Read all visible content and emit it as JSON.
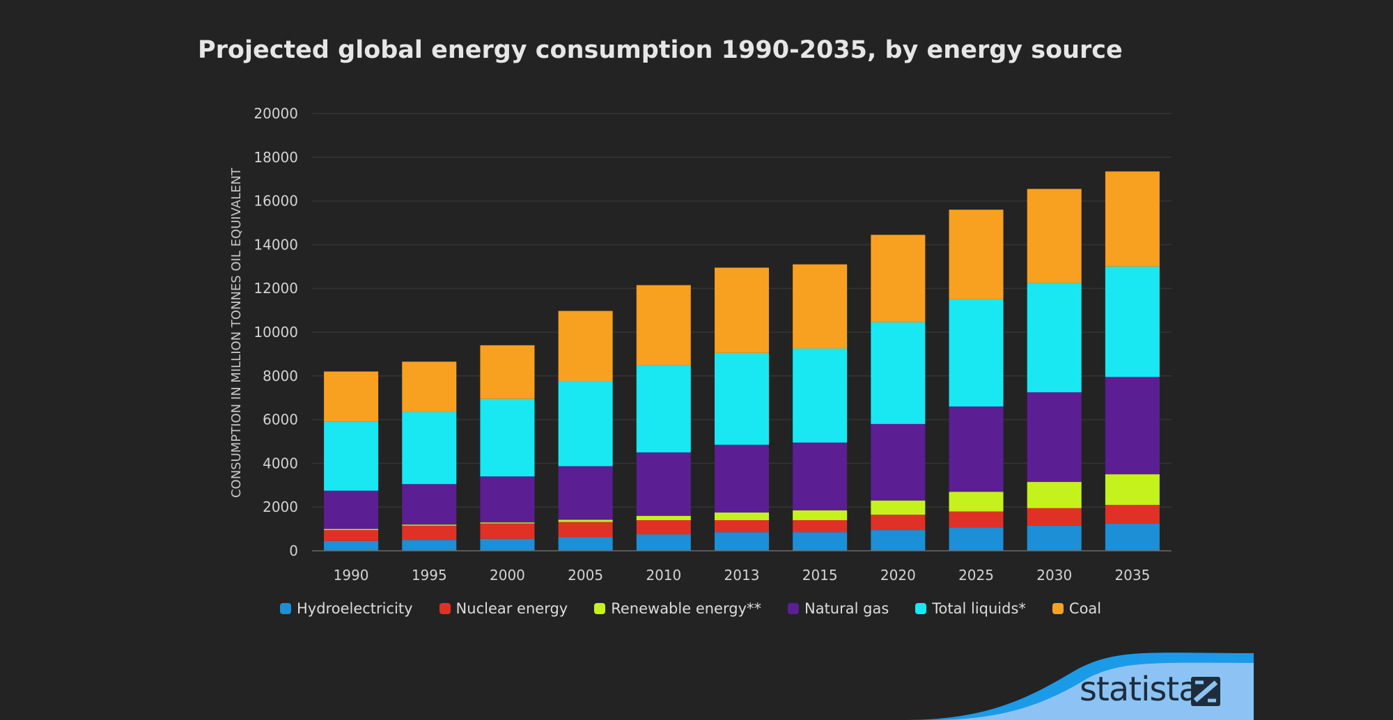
{
  "title": "Projected global energy consumption 1990-2035, by energy source",
  "logo": {
    "text": "statista",
    "icon": "statista-logo-mark"
  },
  "chart_data": {
    "type": "bar",
    "stacked": true,
    "categories": [
      "1990",
      "1995",
      "2000",
      "2005",
      "2010",
      "2013",
      "2015",
      "2020",
      "2025",
      "2030",
      "2035"
    ],
    "ylabel": "CONSUMPTION IN MILLION TONNES OIL EQUIVALENT",
    "xlabel": "",
    "ylim": [
      0,
      20000
    ],
    "yticks": [
      0,
      2000,
      4000,
      6000,
      8000,
      10000,
      12000,
      14000,
      16000,
      18000,
      20000
    ],
    "ytick_labels": [
      "0",
      "2000",
      "4000",
      "6000",
      "8000",
      "10000",
      "12000",
      "14000",
      "16000",
      "18000",
      "20000"
    ],
    "grid": true,
    "legend_position": "bottom",
    "series": [
      {
        "name": "Hydroelectricity",
        "color": "#1c8fd6",
        "values": [
          450,
          500,
          550,
          620,
          750,
          850,
          850,
          950,
          1050,
          1150,
          1250
        ]
      },
      {
        "name": "Nuclear energy",
        "color": "#e03127",
        "values": [
          500,
          650,
          700,
          700,
          650,
          550,
          550,
          700,
          750,
          800,
          850
        ]
      },
      {
        "name": "Renewable energy**",
        "color": "#c5f21c",
        "values": [
          50,
          50,
          50,
          100,
          200,
          350,
          450,
          650,
          900,
          1200,
          1400
        ]
      },
      {
        "name": "Natural gas",
        "color": "#5c1e93",
        "values": [
          1750,
          1850,
          2100,
          2450,
          2900,
          3100,
          3100,
          3500,
          3900,
          4100,
          4450
        ]
      },
      {
        "name": "Total liquids*",
        "color": "#19e8f2",
        "values": [
          3150,
          3300,
          3550,
          3900,
          4000,
          4200,
          4300,
          4650,
          4900,
          5000,
          5050
        ]
      },
      {
        "name": "Coal",
        "color": "#f8a020",
        "values": [
          2300,
          2300,
          2450,
          3200,
          3650,
          3900,
          3850,
          4000,
          4100,
          4300,
          4350
        ]
      }
    ]
  }
}
